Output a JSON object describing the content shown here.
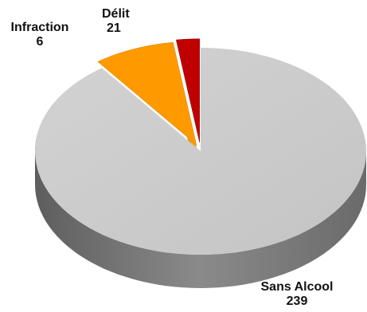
{
  "chart_data": {
    "type": "pie",
    "style": "3d-exploded",
    "title": "",
    "categories": [
      "Sans Alcool",
      "Délit",
      "Infraction"
    ],
    "values": [
      239,
      21,
      6
    ],
    "colors": {
      "Sans Alcool": "#c9c9c9",
      "Délit": "#ff9900",
      "Infraction": "#c00000"
    },
    "legend": false,
    "labels": {
      "sans_alcool": {
        "name": "Sans Alcool",
        "value": "239"
      },
      "delit": {
        "name": "Délit",
        "value": "21"
      },
      "infraction": {
        "name": "Infraction",
        "value": "6"
      }
    }
  }
}
